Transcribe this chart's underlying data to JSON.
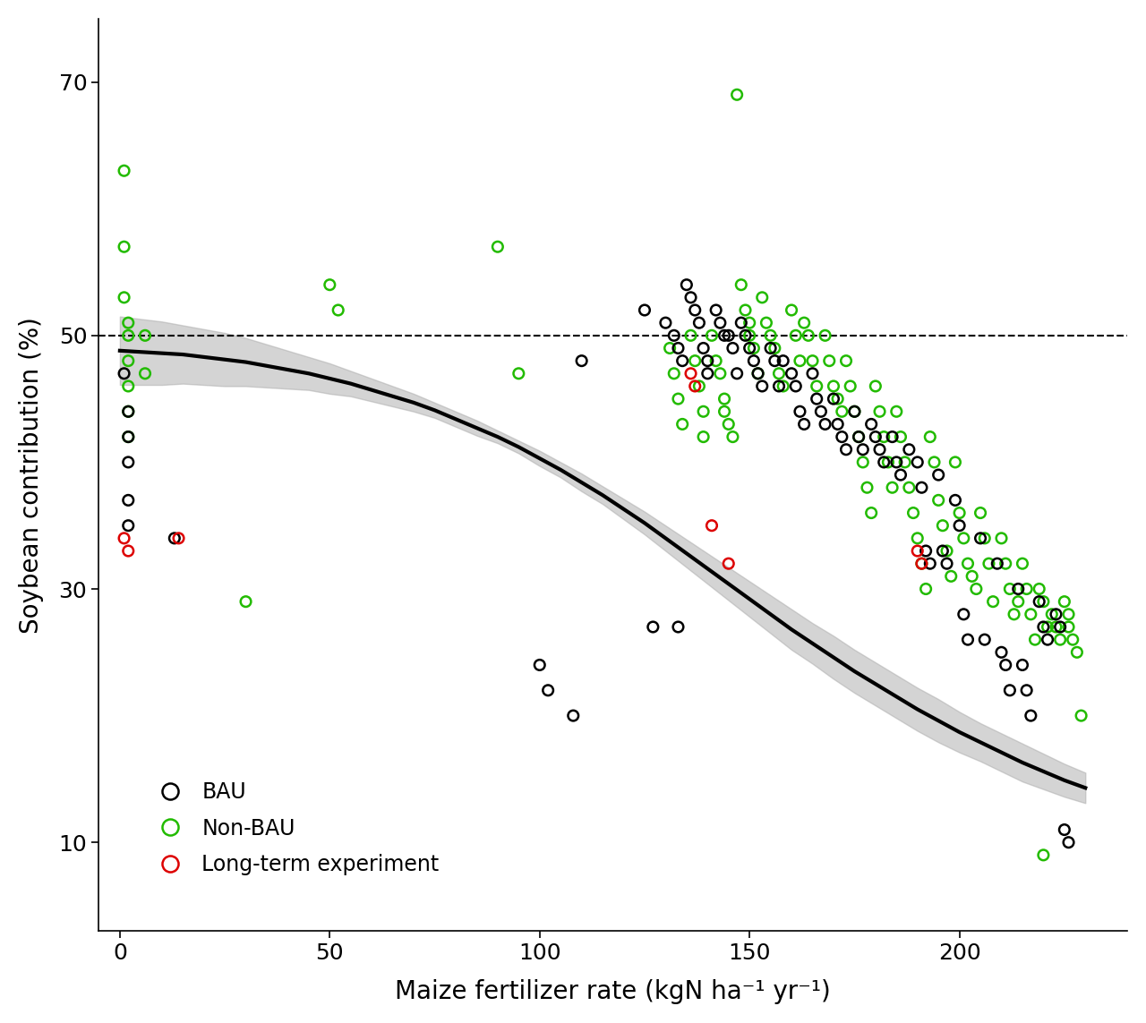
{
  "xlabel": "Maize fertilizer rate (kgN ha⁻¹ yr⁻¹)",
  "ylabel": "Soybean contribution (%)",
  "xlim": [
    -5,
    240
  ],
  "ylim": [
    3,
    75
  ],
  "yticks": [
    10,
    30,
    50,
    70
  ],
  "xticks": [
    0,
    50,
    100,
    150,
    200
  ],
  "dashed_line_y": 50,
  "curve_color": "#000000",
  "ci_color": "#aaaaaa",
  "ci_alpha": 0.5,
  "bau_color": "#000000",
  "nonbau_color": "#22bb00",
  "longterm_color": "#dd0000",
  "marker_size": 70,
  "marker_lw": 1.8,
  "bau_points": [
    [
      1,
      47
    ],
    [
      2,
      44
    ],
    [
      2,
      42
    ],
    [
      2,
      40
    ],
    [
      2,
      37
    ],
    [
      2,
      35
    ],
    [
      13,
      34
    ],
    [
      110,
      48
    ],
    [
      125,
      52
    ],
    [
      127,
      27
    ],
    [
      130,
      51
    ],
    [
      132,
      50
    ],
    [
      133,
      49
    ],
    [
      133,
      27
    ],
    [
      134,
      48
    ],
    [
      135,
      54
    ],
    [
      136,
      53
    ],
    [
      137,
      52
    ],
    [
      138,
      51
    ],
    [
      139,
      49
    ],
    [
      140,
      48
    ],
    [
      140,
      47
    ],
    [
      142,
      52
    ],
    [
      143,
      51
    ],
    [
      144,
      50
    ],
    [
      145,
      50
    ],
    [
      146,
      49
    ],
    [
      147,
      47
    ],
    [
      148,
      51
    ],
    [
      149,
      50
    ],
    [
      150,
      49
    ],
    [
      151,
      48
    ],
    [
      152,
      47
    ],
    [
      153,
      46
    ],
    [
      155,
      49
    ],
    [
      156,
      48
    ],
    [
      157,
      46
    ],
    [
      158,
      48
    ],
    [
      160,
      47
    ],
    [
      161,
      46
    ],
    [
      162,
      44
    ],
    [
      163,
      43
    ],
    [
      165,
      47
    ],
    [
      166,
      45
    ],
    [
      167,
      44
    ],
    [
      168,
      43
    ],
    [
      170,
      45
    ],
    [
      171,
      43
    ],
    [
      172,
      42
    ],
    [
      173,
      41
    ],
    [
      175,
      44
    ],
    [
      176,
      42
    ],
    [
      177,
      41
    ],
    [
      179,
      43
    ],
    [
      180,
      42
    ],
    [
      181,
      41
    ],
    [
      182,
      40
    ],
    [
      184,
      42
    ],
    [
      185,
      40
    ],
    [
      186,
      39
    ],
    [
      188,
      41
    ],
    [
      190,
      40
    ],
    [
      191,
      38
    ],
    [
      192,
      33
    ],
    [
      193,
      32
    ],
    [
      195,
      39
    ],
    [
      196,
      33
    ],
    [
      197,
      32
    ],
    [
      199,
      37
    ],
    [
      200,
      35
    ],
    [
      201,
      28
    ],
    [
      202,
      26
    ],
    [
      205,
      34
    ],
    [
      206,
      26
    ],
    [
      209,
      32
    ],
    [
      210,
      25
    ],
    [
      211,
      24
    ],
    [
      212,
      22
    ],
    [
      214,
      30
    ],
    [
      215,
      24
    ],
    [
      216,
      22
    ],
    [
      217,
      20
    ],
    [
      219,
      29
    ],
    [
      220,
      27
    ],
    [
      221,
      26
    ],
    [
      223,
      28
    ],
    [
      224,
      27
    ],
    [
      225,
      11
    ],
    [
      226,
      10
    ],
    [
      100,
      24
    ],
    [
      102,
      22
    ],
    [
      108,
      20
    ]
  ],
  "nonbau_points": [
    [
      1,
      63
    ],
    [
      1,
      57
    ],
    [
      1,
      53
    ],
    [
      2,
      51
    ],
    [
      2,
      50
    ],
    [
      2,
      48
    ],
    [
      2,
      46
    ],
    [
      2,
      44
    ],
    [
      2,
      42
    ],
    [
      6,
      50
    ],
    [
      6,
      47
    ],
    [
      30,
      29
    ],
    [
      50,
      54
    ],
    [
      52,
      52
    ],
    [
      90,
      57
    ],
    [
      95,
      47
    ],
    [
      131,
      49
    ],
    [
      132,
      47
    ],
    [
      133,
      45
    ],
    [
      134,
      43
    ],
    [
      136,
      50
    ],
    [
      137,
      48
    ],
    [
      138,
      46
    ],
    [
      139,
      44
    ],
    [
      139,
      42
    ],
    [
      141,
      50
    ],
    [
      142,
      48
    ],
    [
      143,
      47
    ],
    [
      144,
      45
    ],
    [
      144,
      44
    ],
    [
      145,
      43
    ],
    [
      146,
      42
    ],
    [
      147,
      69
    ],
    [
      148,
      54
    ],
    [
      149,
      52
    ],
    [
      150,
      51
    ],
    [
      150,
      50
    ],
    [
      151,
      49
    ],
    [
      152,
      47
    ],
    [
      153,
      53
    ],
    [
      154,
      51
    ],
    [
      155,
      50
    ],
    [
      156,
      49
    ],
    [
      157,
      47
    ],
    [
      158,
      46
    ],
    [
      160,
      52
    ],
    [
      161,
      50
    ],
    [
      162,
      48
    ],
    [
      163,
      51
    ],
    [
      164,
      50
    ],
    [
      165,
      48
    ],
    [
      166,
      46
    ],
    [
      168,
      50
    ],
    [
      169,
      48
    ],
    [
      170,
      46
    ],
    [
      171,
      45
    ],
    [
      172,
      44
    ],
    [
      173,
      48
    ],
    [
      174,
      46
    ],
    [
      175,
      44
    ],
    [
      176,
      42
    ],
    [
      177,
      40
    ],
    [
      178,
      38
    ],
    [
      179,
      36
    ],
    [
      180,
      46
    ],
    [
      181,
      44
    ],
    [
      182,
      42
    ],
    [
      183,
      40
    ],
    [
      184,
      38
    ],
    [
      185,
      44
    ],
    [
      186,
      42
    ],
    [
      187,
      40
    ],
    [
      188,
      38
    ],
    [
      189,
      36
    ],
    [
      190,
      34
    ],
    [
      191,
      32
    ],
    [
      192,
      30
    ],
    [
      193,
      42
    ],
    [
      194,
      40
    ],
    [
      195,
      37
    ],
    [
      196,
      35
    ],
    [
      197,
      33
    ],
    [
      198,
      31
    ],
    [
      199,
      40
    ],
    [
      200,
      36
    ],
    [
      201,
      34
    ],
    [
      202,
      32
    ],
    [
      203,
      31
    ],
    [
      204,
      30
    ],
    [
      205,
      36
    ],
    [
      206,
      34
    ],
    [
      207,
      32
    ],
    [
      208,
      29
    ],
    [
      210,
      34
    ],
    [
      211,
      32
    ],
    [
      212,
      30
    ],
    [
      213,
      28
    ],
    [
      214,
      29
    ],
    [
      215,
      32
    ],
    [
      216,
      30
    ],
    [
      217,
      28
    ],
    [
      218,
      26
    ],
    [
      219,
      30
    ],
    [
      220,
      29
    ],
    [
      221,
      27
    ],
    [
      222,
      28
    ],
    [
      223,
      27
    ],
    [
      224,
      26
    ],
    [
      225,
      29
    ],
    [
      226,
      28
    ],
    [
      226,
      27
    ],
    [
      227,
      26
    ],
    [
      228,
      25
    ],
    [
      229,
      20
    ],
    [
      220,
      9
    ]
  ],
  "longterm_points": [
    [
      1,
      34
    ],
    [
      2,
      33
    ],
    [
      14,
      34
    ],
    [
      136,
      47
    ],
    [
      137,
      46
    ],
    [
      141,
      35
    ],
    [
      145,
      32
    ],
    [
      190,
      33
    ],
    [
      191,
      32
    ]
  ],
  "curve_x_fine": [
    0,
    5,
    10,
    15,
    20,
    25,
    30,
    35,
    40,
    45,
    50,
    55,
    60,
    65,
    70,
    75,
    80,
    85,
    90,
    95,
    100,
    105,
    110,
    115,
    120,
    125,
    130,
    135,
    140,
    145,
    150,
    155,
    160,
    165,
    170,
    175,
    180,
    185,
    190,
    195,
    200,
    205,
    210,
    215,
    220,
    225,
    230
  ],
  "curve_y_fine": [
    48.8,
    48.7,
    48.6,
    48.5,
    48.3,
    48.1,
    47.9,
    47.6,
    47.3,
    47.0,
    46.6,
    46.2,
    45.7,
    45.2,
    44.7,
    44.1,
    43.4,
    42.7,
    42.0,
    41.2,
    40.3,
    39.4,
    38.4,
    37.4,
    36.3,
    35.2,
    34.0,
    32.8,
    31.6,
    30.4,
    29.2,
    28.0,
    26.8,
    25.7,
    24.6,
    23.5,
    22.5,
    21.5,
    20.5,
    19.6,
    18.7,
    17.9,
    17.1,
    16.3,
    15.6,
    14.9,
    14.3
  ],
  "ci_upper_fine": [
    51.5,
    51.3,
    51.1,
    50.8,
    50.5,
    50.2,
    49.8,
    49.3,
    48.8,
    48.3,
    47.8,
    47.2,
    46.6,
    46.0,
    45.4,
    44.7,
    44.0,
    43.3,
    42.5,
    41.7,
    40.9,
    40.0,
    39.1,
    38.1,
    37.1,
    36.1,
    35.0,
    33.9,
    32.8,
    31.7,
    30.6,
    29.5,
    28.4,
    27.3,
    26.3,
    25.2,
    24.2,
    23.2,
    22.2,
    21.3,
    20.3,
    19.4,
    18.6,
    17.8,
    17.0,
    16.2,
    15.5
  ],
  "ci_lower_fine": [
    46.1,
    46.1,
    46.1,
    46.2,
    46.1,
    46.0,
    46.0,
    45.9,
    45.8,
    45.7,
    45.4,
    45.2,
    44.8,
    44.4,
    44.0,
    43.5,
    42.8,
    42.1,
    41.5,
    40.7,
    39.7,
    38.8,
    37.7,
    36.7,
    35.5,
    34.3,
    33.0,
    31.7,
    30.4,
    29.1,
    27.8,
    26.5,
    25.2,
    24.1,
    22.9,
    21.8,
    20.8,
    19.8,
    18.8,
    17.9,
    17.1,
    16.4,
    15.6,
    14.8,
    14.2,
    13.6,
    13.1
  ]
}
